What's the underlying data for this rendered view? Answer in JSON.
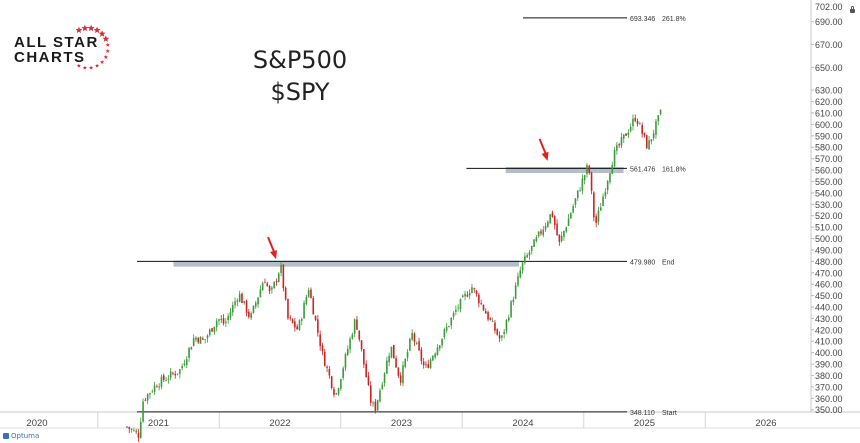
{
  "logo": {
    "line1": "ALL STAR",
    "line2": "CHARTS",
    "star_color": "#d9303b"
  },
  "title": {
    "line1": "S&P500",
    "line2": "$SPY"
  },
  "footer": {
    "brand": "Optuma"
  },
  "chart_data": {
    "type": "candlestick",
    "y_axis": {
      "min": 348,
      "max": 702,
      "position": "right",
      "ticks": [
        350,
        360,
        370,
        380,
        390,
        400,
        410,
        420,
        430,
        440,
        450,
        460,
        470,
        480,
        490,
        500,
        510,
        520,
        530,
        540,
        550,
        560,
        570,
        580,
        590,
        600,
        610,
        620,
        630,
        650,
        670,
        690
      ],
      "top_label": "702.00",
      "tick_decimals": 2
    },
    "x_axis": {
      "year_labels": [
        "2020",
        "2021",
        "2022",
        "2023",
        "2024",
        "2025",
        "2026"
      ]
    },
    "up_color": "#3a9a3a",
    "down_color": "#cc2222",
    "highlight_color": "#a8b2bf",
    "levels": [
      {
        "value": 693.346,
        "value_label": "693.346",
        "tag": "261.8%"
      },
      {
        "value": 561.476,
        "value_label": "561.476",
        "tag": "161.8%"
      },
      {
        "value": 479.98,
        "value_label": "479.980",
        "tag": "End"
      },
      {
        "value": 348.11,
        "value_label": "348.110",
        "tag": "Start"
      }
    ],
    "zones": [
      {
        "from": "2021-02-15",
        "to": "2023-12-20",
        "value": 478
      },
      {
        "from": "2023-11-10",
        "to": "2024-10-30",
        "value": 560
      }
    ],
    "arrows": [
      {
        "date": "2021-12-20",
        "value": 482
      },
      {
        "date": "2024-03-15",
        "value": 568
      }
    ],
    "path": [
      [
        "2020-09-28",
        335
      ],
      [
        "2020-11-02",
        328
      ],
      [
        "2020-11-16",
        359
      ],
      [
        "2020-12-28",
        373
      ],
      [
        "2021-01-25",
        378
      ],
      [
        "2021-03-08",
        385
      ],
      [
        "2021-04-19",
        414
      ],
      [
        "2021-05-17",
        410
      ],
      [
        "2021-06-28",
        430
      ],
      [
        "2021-07-19",
        425
      ],
      [
        "2021-08-30",
        452
      ],
      [
        "2021-10-04",
        430
      ],
      [
        "2021-11-15",
        466
      ],
      [
        "2021-12-03",
        450
      ],
      [
        "2022-01-03",
        476
      ],
      [
        "2022-01-24",
        430
      ],
      [
        "2022-02-24",
        420
      ],
      [
        "2022-03-28",
        457
      ],
      [
        "2022-05-09",
        398
      ],
      [
        "2022-06-17",
        362
      ],
      [
        "2022-08-16",
        430
      ],
      [
        "2022-09-30",
        358
      ],
      [
        "2022-10-13",
        350
      ],
      [
        "2022-11-30",
        406
      ],
      [
        "2022-12-28",
        376
      ],
      [
        "2023-02-02",
        416
      ],
      [
        "2023-03-13",
        385
      ],
      [
        "2023-06-15",
        438
      ],
      [
        "2023-07-31",
        458
      ],
      [
        "2023-10-27",
        410
      ],
      [
        "2023-12-28",
        476
      ],
      [
        "2024-03-28",
        523
      ],
      [
        "2024-04-19",
        495
      ],
      [
        "2024-07-16",
        565
      ],
      [
        "2024-08-05",
        510
      ],
      [
        "2024-09-30",
        573
      ],
      [
        "2024-12-06",
        607
      ],
      [
        "2025-01-10",
        580
      ],
      [
        "2025-02-19",
        610
      ]
    ]
  }
}
